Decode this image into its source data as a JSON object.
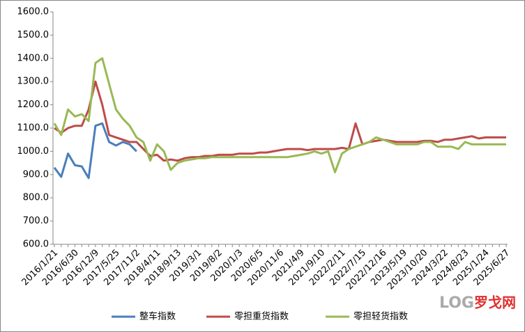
{
  "chart_data": {
    "type": "line",
    "categories": [
      "2016/1/21",
      null,
      null,
      "2016/6/30",
      null,
      null,
      "2016/12/9",
      null,
      null,
      "2017/5/25",
      null,
      null,
      "2017/11/2",
      null,
      null,
      "2018/4/11",
      null,
      null,
      "2018/9/13",
      null,
      null,
      "2019/3/1",
      null,
      null,
      "2019/8/2",
      null,
      null,
      "2020/1/3",
      null,
      null,
      "2020/6/5",
      null,
      null,
      "2020/11/6",
      null,
      null,
      "2021/4/9",
      null,
      null,
      "2021/9/10",
      null,
      null,
      "2022/2/11",
      null,
      null,
      "2022/7/15",
      null,
      null,
      "2022/12/16",
      null,
      null,
      "2023/5/19",
      null,
      null,
      "2023/10/20",
      null,
      null,
      "2024/3/22",
      null,
      null,
      "2024/8/23",
      null,
      null,
      "2025/1/24",
      null,
      null,
      "2025/6/27"
    ],
    "series": [
      {
        "name": "整车指数",
        "color": "#4a7ebb",
        "values": [
          930,
          890,
          990,
          940,
          935,
          885,
          1110,
          1120,
          1040,
          1025,
          1040,
          1030,
          1000,
          null,
          null,
          null,
          null,
          null,
          null,
          null,
          null,
          null,
          null,
          null,
          null,
          null,
          null,
          null,
          null,
          null,
          null,
          null,
          null,
          null,
          null,
          null,
          null,
          null,
          null,
          null,
          null,
          null,
          null,
          null,
          null,
          null,
          null,
          null,
          null,
          null,
          null,
          null,
          null,
          null,
          null,
          null,
          null,
          null,
          null,
          null,
          null,
          null,
          null,
          null,
          null,
          null,
          null
        ]
      },
      {
        "name": "零担重货指数",
        "color": "#be4b48",
        "values": [
          1100,
          1080,
          1100,
          1110,
          1110,
          1180,
          1300,
          1200,
          1070,
          1060,
          1050,
          1040,
          1040,
          1010,
          980,
          985,
          960,
          965,
          960,
          970,
          975,
          975,
          980,
          980,
          985,
          985,
          985,
          990,
          990,
          990,
          995,
          995,
          1000,
          1005,
          1010,
          1010,
          1010,
          1005,
          1010,
          1010,
          1010,
          1010,
          1015,
          1010,
          1120,
          1030,
          1040,
          1045,
          1050,
          1045,
          1040,
          1040,
          1040,
          1040,
          1045,
          1045,
          1040,
          1050,
          1050,
          1055,
          1060,
          1065,
          1055,
          1060,
          1060,
          1060,
          1060
        ]
      },
      {
        "name": "零担轻货指数",
        "color": "#98b954",
        "values": [
          1120,
          1070,
          1180,
          1150,
          1160,
          1130,
          1380,
          1400,
          1290,
          1180,
          1140,
          1110,
          1060,
          1040,
          960,
          1030,
          1000,
          920,
          950,
          960,
          965,
          970,
          970,
          975,
          975,
          975,
          975,
          975,
          975,
          975,
          975,
          975,
          975,
          975,
          975,
          980,
          985,
          990,
          1000,
          990,
          1000,
          910,
          990,
          1010,
          1020,
          1030,
          1040,
          1060,
          1050,
          1040,
          1030,
          1030,
          1030,
          1030,
          1040,
          1040,
          1020,
          1020,
          1020,
          1010,
          1040,
          1030,
          1030,
          1030,
          1030,
          1030,
          1030
        ]
      }
    ],
    "ylim": [
      600,
      1600
    ],
    "yticks": [
      {
        "value": 600,
        "label": "600.0"
      },
      {
        "value": 700,
        "label": "700.0"
      },
      {
        "value": 800,
        "label": "800.0"
      },
      {
        "value": 900,
        "label": "900.0"
      },
      {
        "value": 1000,
        "label": "1000.0"
      },
      {
        "value": 1100,
        "label": "1100.0"
      },
      {
        "value": 1200,
        "label": "1200.0"
      },
      {
        "value": 1300,
        "label": "1300.0"
      },
      {
        "value": 1400,
        "label": "1400.0"
      },
      {
        "value": 1500,
        "label": "1500.0"
      },
      {
        "value": 1600,
        "label": "1600.0"
      }
    ],
    "grid": false,
    "legend": "bottom",
    "watermark_logo": "LOG",
    "watermark_text": "罗戈网"
  }
}
